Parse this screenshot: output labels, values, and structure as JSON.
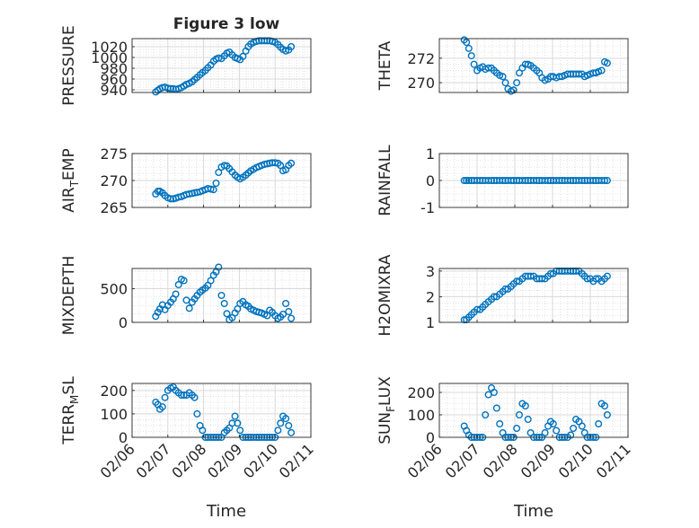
{
  "figure": {
    "title": "Figure 3 low",
    "xlabel": "Time"
  },
  "colors": {
    "marker": "#0072BD",
    "axis": "#262626",
    "grid": "#d9d9d9",
    "grid_minor": "#cfcfcf"
  },
  "x_tick_labels": [
    "02/06",
    "02/07",
    "02/08",
    "02/09",
    "02/10",
    "02/11"
  ],
  "chart_data": [
    {
      "type": "scatter",
      "title": "Figure 3 low",
      "ylabel": "PRESSURE",
      "xlabel": "",
      "ylim": [
        935,
        1035
      ],
      "yticks": [
        940,
        960,
        980,
        1000,
        1020
      ],
      "xlim": [
        0,
        5
      ],
      "grid": true,
      "series": [
        {
          "x": [
            0.66,
            0.72,
            0.78,
            0.85,
            0.92,
            1.0,
            1.08,
            1.15,
            1.22,
            1.3,
            1.38,
            1.45,
            1.52,
            1.6,
            1.68,
            1.75,
            1.82,
            1.9,
            1.97,
            2.05,
            2.12,
            2.2,
            2.28,
            2.35,
            2.42,
            2.5,
            2.58,
            2.65,
            2.72,
            2.8,
            2.88,
            2.95,
            3.02,
            3.1,
            3.18,
            3.25,
            3.32,
            3.4,
            3.48,
            3.55,
            3.62,
            3.7,
            3.78,
            3.85,
            3.92,
            4.0,
            4.08,
            4.15,
            4.22,
            4.3,
            4.38,
            4.45
          ],
          "y": [
            936,
            939,
            942,
            944,
            945,
            943,
            942,
            942,
            941,
            942,
            944,
            947,
            950,
            952,
            955,
            959,
            963,
            968,
            972,
            976,
            981,
            986,
            993,
            997,
            999,
            998,
            1003,
            1008,
            1010,
            1005,
            1000,
            998,
            996,
            1002,
            1012,
            1020,
            1025,
            1028,
            1030,
            1031,
            1031,
            1031,
            1031,
            1031,
            1030,
            1028,
            1024,
            1019,
            1015,
            1012,
            1014,
            1020
          ]
        }
      ]
    },
    {
      "type": "scatter",
      "ylabel": "THETA",
      "xlabel": "",
      "ylim": [
        269.2,
        273.6
      ],
      "yticks": [
        270,
        272
      ],
      "xlim": [
        0,
        5
      ],
      "grid": true,
      "series": [
        {
          "x": [
            0.66,
            0.72,
            0.78,
            0.85,
            0.92,
            1.0,
            1.08,
            1.15,
            1.22,
            1.3,
            1.38,
            1.45,
            1.52,
            1.6,
            1.68,
            1.75,
            1.82,
            1.9,
            1.97,
            2.05,
            2.12,
            2.2,
            2.28,
            2.35,
            2.42,
            2.5,
            2.58,
            2.65,
            2.72,
            2.8,
            2.88,
            2.95,
            3.02,
            3.1,
            3.18,
            3.25,
            3.32,
            3.4,
            3.48,
            3.55,
            3.62,
            3.7,
            3.78,
            3.85,
            3.92,
            4.0,
            4.08,
            4.15,
            4.22,
            4.3,
            4.38,
            4.45
          ],
          "y": [
            273.5,
            273.3,
            272.8,
            272.2,
            271.5,
            271.0,
            271.2,
            271.3,
            271.1,
            271.2,
            271.2,
            271.0,
            270.8,
            270.6,
            270.5,
            270.0,
            269.5,
            269.3,
            269.4,
            270.0,
            270.8,
            271.2,
            271.5,
            271.5,
            271.4,
            271.2,
            271.0,
            270.8,
            270.4,
            270.2,
            270.3,
            270.5,
            270.5,
            270.4,
            270.5,
            270.5,
            270.6,
            270.7,
            270.7,
            270.7,
            270.7,
            270.7,
            270.7,
            270.5,
            270.6,
            270.7,
            270.8,
            270.8,
            270.9,
            271.0,
            271.7,
            271.6
          ]
        }
      ]
    },
    {
      "type": "scatter",
      "ylabel": "AIR_TEMP",
      "xlabel": "",
      "ylim": [
        265,
        275
      ],
      "yticks": [
        265,
        270,
        275
      ],
      "xlim": [
        0,
        5
      ],
      "grid": true,
      "series": [
        {
          "x": [
            0.66,
            0.72,
            0.78,
            0.85,
            0.92,
            1.0,
            1.08,
            1.15,
            1.22,
            1.3,
            1.38,
            1.45,
            1.52,
            1.6,
            1.68,
            1.75,
            1.82,
            1.9,
            1.97,
            2.05,
            2.12,
            2.2,
            2.28,
            2.35,
            2.42,
            2.5,
            2.58,
            2.65,
            2.72,
            2.8,
            2.88,
            2.95,
            3.02,
            3.1,
            3.18,
            3.25,
            3.32,
            3.4,
            3.48,
            3.55,
            3.62,
            3.7,
            3.78,
            3.85,
            3.92,
            4.0,
            4.08,
            4.15,
            4.22,
            4.3,
            4.38,
            4.45
          ],
          "y": [
            267.5,
            268.0,
            268.0,
            267.7,
            267.2,
            266.8,
            266.6,
            266.6,
            266.7,
            266.9,
            267.0,
            267.2,
            267.4,
            267.5,
            267.6,
            267.7,
            267.8,
            267.9,
            268.1,
            268.3,
            268.5,
            268.4,
            268.3,
            269.5,
            271.5,
            272.5,
            272.8,
            272.7,
            272.2,
            271.6,
            271.0,
            270.6,
            270.3,
            270.6,
            271.0,
            271.4,
            271.8,
            272.1,
            272.4,
            272.6,
            272.8,
            273.0,
            273.1,
            273.2,
            273.3,
            273.3,
            273.2,
            272.8,
            271.8,
            272.0,
            272.8,
            273.2
          ]
        }
      ]
    },
    {
      "type": "scatter",
      "ylabel": "RAINFALL",
      "xlabel": "",
      "ylim": [
        -1,
        1
      ],
      "yticks": [
        -1,
        0,
        1
      ],
      "xlim": [
        0,
        5
      ],
      "grid": true,
      "series": [
        {
          "x": [
            0.66,
            0.72,
            0.78,
            0.85,
            0.92,
            1.0,
            1.08,
            1.15,
            1.22,
            1.3,
            1.38,
            1.45,
            1.52,
            1.6,
            1.68,
            1.75,
            1.82,
            1.9,
            1.97,
            2.05,
            2.12,
            2.2,
            2.28,
            2.35,
            2.42,
            2.5,
            2.58,
            2.65,
            2.72,
            2.8,
            2.88,
            2.95,
            3.02,
            3.1,
            3.18,
            3.25,
            3.32,
            3.4,
            3.48,
            3.55,
            3.62,
            3.7,
            3.78,
            3.85,
            3.92,
            4.0,
            4.08,
            4.15,
            4.22,
            4.3,
            4.38,
            4.45
          ],
          "y": [
            0,
            0,
            0,
            0,
            0,
            0,
            0,
            0,
            0,
            0,
            0,
            0,
            0,
            0,
            0,
            0,
            0,
            0,
            0,
            0,
            0,
            0,
            0,
            0,
            0,
            0,
            0,
            0,
            0,
            0,
            0,
            0,
            0,
            0,
            0,
            0,
            0,
            0,
            0,
            0,
            0,
            0,
            0,
            0,
            0,
            0,
            0,
            0,
            0,
            0,
            0,
            0
          ]
        }
      ]
    },
    {
      "type": "scatter",
      "ylabel": "MIXDEPTH",
      "xlabel": "",
      "ylim": [
        0,
        800
      ],
      "yticks": [
        0,
        500
      ],
      "xlim": [
        0,
        5
      ],
      "grid": true,
      "series": [
        {
          "x": [
            0.66,
            0.72,
            0.78,
            0.85,
            0.92,
            1.0,
            1.08,
            1.15,
            1.22,
            1.3,
            1.38,
            1.45,
            1.52,
            1.6,
            1.68,
            1.75,
            1.82,
            1.9,
            1.97,
            2.05,
            2.12,
            2.2,
            2.28,
            2.35,
            2.42,
            2.5,
            2.58,
            2.65,
            2.72,
            2.8,
            2.88,
            2.95,
            3.02,
            3.1,
            3.18,
            3.25,
            3.32,
            3.4,
            3.48,
            3.55,
            3.62,
            3.7,
            3.78,
            3.85,
            3.92,
            4.0,
            4.08,
            4.15,
            4.22,
            4.3,
            4.38,
            4.45
          ],
          "y": [
            90,
            150,
            200,
            260,
            190,
            250,
            300,
            350,
            420,
            560,
            640,
            620,
            330,
            210,
            300,
            350,
            400,
            450,
            480,
            510,
            550,
            620,
            700,
            750,
            820,
            400,
            280,
            130,
            40,
            70,
            140,
            200,
            280,
            310,
            260,
            240,
            200,
            180,
            160,
            150,
            140,
            120,
            100,
            180,
            150,
            100,
            60,
            80,
            120,
            280,
            160,
            60
          ]
        }
      ]
    },
    {
      "type": "scatter",
      "ylabel": "H2OMIXRA",
      "xlabel": "",
      "ylim": [
        1,
        3.1
      ],
      "yticks": [
        1,
        2,
        3
      ],
      "xlim": [
        0,
        5
      ],
      "grid": true,
      "series": [
        {
          "x": [
            0.66,
            0.72,
            0.78,
            0.85,
            0.92,
            1.0,
            1.08,
            1.15,
            1.22,
            1.3,
            1.38,
            1.45,
            1.52,
            1.6,
            1.68,
            1.75,
            1.82,
            1.9,
            1.97,
            2.05,
            2.12,
            2.2,
            2.28,
            2.35,
            2.42,
            2.5,
            2.58,
            2.65,
            2.72,
            2.8,
            2.88,
            2.95,
            3.02,
            3.1,
            3.18,
            3.25,
            3.32,
            3.4,
            3.48,
            3.55,
            3.62,
            3.7,
            3.78,
            3.85,
            3.92,
            4.0,
            4.08,
            4.15,
            4.22,
            4.3,
            4.38,
            4.45
          ],
          "y": [
            1.1,
            1.1,
            1.2,
            1.3,
            1.4,
            1.5,
            1.5,
            1.6,
            1.7,
            1.8,
            1.9,
            2.0,
            2.0,
            2.1,
            2.2,
            2.3,
            2.3,
            2.4,
            2.5,
            2.6,
            2.6,
            2.7,
            2.8,
            2.8,
            2.8,
            2.8,
            2.7,
            2.7,
            2.7,
            2.7,
            2.8,
            2.9,
            2.9,
            3.0,
            3.0,
            3.0,
            3.0,
            3.0,
            3.0,
            3.0,
            3.0,
            3.0,
            2.9,
            2.8,
            2.7,
            2.7,
            2.6,
            2.7,
            2.7,
            2.6,
            2.7,
            2.8
          ]
        }
      ]
    },
    {
      "type": "scatter",
      "ylabel": "TERR_MSL",
      "xlabel": "Time",
      "ylim": [
        0,
        230
      ],
      "yticks": [
        0,
        100,
        200
      ],
      "xlim": [
        0,
        5
      ],
      "grid": true,
      "series": [
        {
          "x": [
            0.66,
            0.72,
            0.78,
            0.85,
            0.92,
            1.0,
            1.08,
            1.15,
            1.22,
            1.3,
            1.38,
            1.45,
            1.52,
            1.6,
            1.68,
            1.75,
            1.82,
            1.9,
            1.97,
            2.05,
            2.12,
            2.2,
            2.28,
            2.35,
            2.42,
            2.5,
            2.58,
            2.65,
            2.72,
            2.8,
            2.88,
            2.95,
            3.02,
            3.1,
            3.18,
            3.25,
            3.32,
            3.4,
            3.48,
            3.55,
            3.62,
            3.7,
            3.78,
            3.85,
            3.92,
            4.0,
            4.08,
            4.15,
            4.22,
            4.3,
            4.38,
            4.45
          ],
          "y": [
            150,
            140,
            120,
            130,
            170,
            200,
            210,
            215,
            200,
            190,
            180,
            180,
            180,
            190,
            180,
            170,
            100,
            50,
            30,
            0,
            0,
            0,
            0,
            0,
            0,
            0,
            20,
            30,
            40,
            60,
            90,
            60,
            30,
            0,
            0,
            0,
            0,
            0,
            0,
            0,
            0,
            0,
            0,
            0,
            0,
            0,
            30,
            60,
            90,
            80,
            50,
            20
          ]
        }
      ]
    },
    {
      "type": "scatter",
      "ylabel": "SUN_FLUX",
      "xlabel": "Time",
      "ylim": [
        0,
        240
      ],
      "yticks": [
        0,
        100,
        200
      ],
      "xlim": [
        0,
        5
      ],
      "grid": true,
      "series": [
        {
          "x": [
            0.66,
            0.72,
            0.78,
            0.85,
            0.92,
            1.0,
            1.08,
            1.15,
            1.22,
            1.3,
            1.38,
            1.45,
            1.52,
            1.6,
            1.68,
            1.75,
            1.82,
            1.9,
            1.97,
            2.05,
            2.12,
            2.2,
            2.28,
            2.35,
            2.42,
            2.5,
            2.58,
            2.65,
            2.72,
            2.8,
            2.88,
            2.95,
            3.02,
            3.1,
            3.18,
            3.25,
            3.32,
            3.4,
            3.48,
            3.55,
            3.62,
            3.7,
            3.78,
            3.85,
            3.92,
            4.0,
            4.08,
            4.15,
            4.22,
            4.3,
            4.38,
            4.45
          ],
          "y": [
            50,
            30,
            10,
            0,
            0,
            0,
            0,
            0,
            100,
            190,
            220,
            200,
            130,
            60,
            20,
            0,
            0,
            0,
            0,
            40,
            100,
            150,
            140,
            80,
            20,
            0,
            0,
            0,
            0,
            20,
            50,
            70,
            60,
            30,
            0,
            0,
            0,
            0,
            10,
            40,
            80,
            70,
            50,
            20,
            0,
            0,
            0,
            0,
            60,
            150,
            140,
            100
          ]
        }
      ]
    }
  ]
}
